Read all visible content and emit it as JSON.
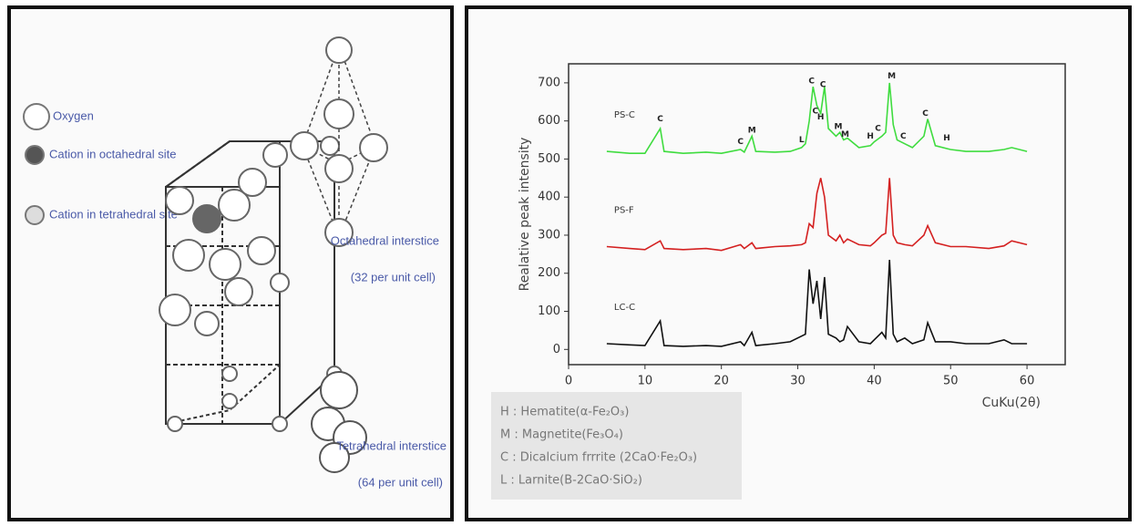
{
  "diagram": {
    "legend": [
      "Oxygen",
      "Cation in octahedral site",
      "Cation in tetrahedral site"
    ],
    "octahedral": {
      "label": "Octahedral interstice",
      "count": "(32 per unit cell)"
    },
    "tetrahedral": {
      "label": "Tetrahedral interstice",
      "count": "(64 per unit cell)"
    }
  },
  "chart_data": {
    "type": "line",
    "ylabel": "Realative peak intensity",
    "xlabel": "CuKu(2θ)",
    "x": [
      5,
      8,
      10,
      12,
      12.5,
      15,
      18,
      20,
      22.5,
      23,
      24,
      24.5,
      27,
      29,
      30.5,
      31,
      31.5,
      32,
      32.5,
      33,
      33.5,
      34,
      35,
      35.5,
      36,
      36.5,
      38,
      39.5,
      40,
      41,
      41.5,
      42,
      42.5,
      43,
      44,
      45,
      46.5,
      47,
      48,
      50,
      52,
      55,
      57,
      58,
      60
    ],
    "series": [
      {
        "name": "PS-C",
        "color": "#3fdc3f",
        "values": [
          520,
          515,
          515,
          580,
          520,
          515,
          518,
          515,
          525,
          518,
          560,
          520,
          518,
          520,
          530,
          540,
          600,
          690,
          640,
          620,
          690,
          580,
          560,
          570,
          550,
          555,
          530,
          535,
          545,
          560,
          570,
          700,
          590,
          550,
          540,
          530,
          560,
          605,
          535,
          525,
          520,
          520,
          525,
          530,
          520
        ]
      },
      {
        "name": "PS-F",
        "color": "#d42020",
        "values": [
          270,
          265,
          262,
          285,
          265,
          262,
          265,
          260,
          275,
          265,
          280,
          265,
          270,
          272,
          275,
          280,
          330,
          320,
          410,
          450,
          400,
          300,
          285,
          300,
          280,
          290,
          275,
          272,
          280,
          300,
          305,
          450,
          300,
          280,
          275,
          272,
          300,
          325,
          280,
          270,
          270,
          265,
          272,
          285,
          275
        ]
      },
      {
        "name": "LC-C",
        "color": "#111111",
        "values": [
          15,
          12,
          10,
          75,
          10,
          8,
          10,
          8,
          20,
          10,
          45,
          10,
          15,
          20,
          35,
          40,
          210,
          120,
          180,
          80,
          190,
          40,
          30,
          20,
          25,
          60,
          20,
          15,
          25,
          45,
          30,
          235,
          40,
          20,
          30,
          15,
          25,
          70,
          20,
          20,
          15,
          15,
          25,
          15,
          15
        ]
      }
    ],
    "annotations": [
      {
        "text": "C",
        "x": 12,
        "y": 605
      },
      {
        "text": "C",
        "x": 22.5,
        "y": 545
      },
      {
        "text": "M",
        "x": 24,
        "y": 575
      },
      {
        "text": "L",
        "x": 30.5,
        "y": 550
      },
      {
        "text": "C",
        "x": 31.8,
        "y": 705
      },
      {
        "text": "C",
        "x": 33.3,
        "y": 695
      },
      {
        "text": "C",
        "x": 32.3,
        "y": 625
      },
      {
        "text": "H",
        "x": 33,
        "y": 610
      },
      {
        "text": "M",
        "x": 35.3,
        "y": 585
      },
      {
        "text": "M",
        "x": 36.2,
        "y": 565
      },
      {
        "text": "H",
        "x": 39.5,
        "y": 560
      },
      {
        "text": "C",
        "x": 40.5,
        "y": 580
      },
      {
        "text": "M",
        "x": 42.3,
        "y": 718
      },
      {
        "text": "C",
        "x": 43.8,
        "y": 560
      },
      {
        "text": "C",
        "x": 46.7,
        "y": 620
      },
      {
        "text": "H",
        "x": 49.5,
        "y": 555
      }
    ],
    "legend_box": [
      "H : Hematite(α-Fe₂O₃)",
      "M : Magnetite(Fe₃O₄)",
      "C : Dicalcium frrrite (2CaO·Fe₂O₃)",
      "L : Larnite(B-2CaO·SiO₂)"
    ],
    "xlim": [
      0,
      65
    ],
    "ylim": [
      -40,
      750
    ],
    "xticks": [
      0,
      10,
      20,
      30,
      40,
      50,
      60
    ],
    "yticks": [
      0,
      100,
      200,
      300,
      400,
      500,
      600,
      700
    ]
  }
}
